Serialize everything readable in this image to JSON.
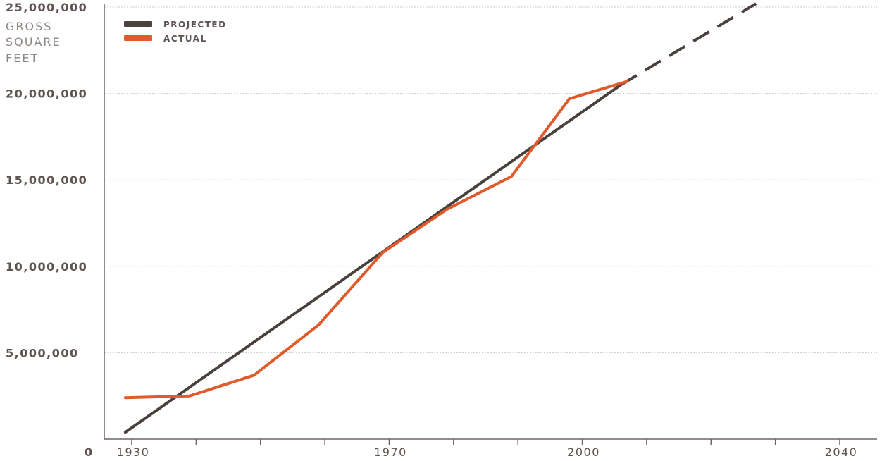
{
  "chart_data": {
    "type": "line",
    "ylabel_lines": [
      "GROSS",
      "SQUARE",
      "FEET"
    ],
    "y_tick_labels": [
      "0",
      "5,000,000",
      "10,000,000",
      "15,000,000",
      "20,000,000",
      "25,000,000"
    ],
    "y_tick_values": [
      0,
      5000000,
      10000000,
      15000000,
      20000000,
      25000000
    ],
    "ylim": [
      0,
      25000000
    ],
    "x_tick_labels": [
      "1930",
      "1970",
      "2000",
      "2040"
    ],
    "x_tick_values": [
      1930,
      1970,
      2000,
      2040
    ],
    "x_minor_ticks": [
      1940,
      1950,
      1960,
      1980,
      1990,
      2010,
      2020,
      2030
    ],
    "xlim": [
      1925,
      2045
    ],
    "grid": true,
    "legend_position": "top-left",
    "colors": {
      "projected": "#4a403d",
      "actual": "#e15a2b",
      "grid": "#c9c9c9",
      "axis": "#6f6663"
    },
    "series": [
      {
        "name": "PROJECTED",
        "color": "#4a403d",
        "x": [
          1929,
          2006
        ],
        "y": [
          400000,
          20500000
        ],
        "extension": {
          "x": [
            2006,
            2027
          ],
          "y": [
            20500000,
            25200000
          ],
          "style": "dashed"
        }
      },
      {
        "name": "ACTUAL",
        "color": "#e15a2b",
        "x": [
          1929,
          1939,
          1949,
          1959,
          1969,
          1979,
          1989,
          1998,
          2007
        ],
        "y": [
          2400000,
          2500000,
          3700000,
          6600000,
          10800000,
          13300000,
          15200000,
          19700000,
          20700000
        ]
      }
    ]
  }
}
